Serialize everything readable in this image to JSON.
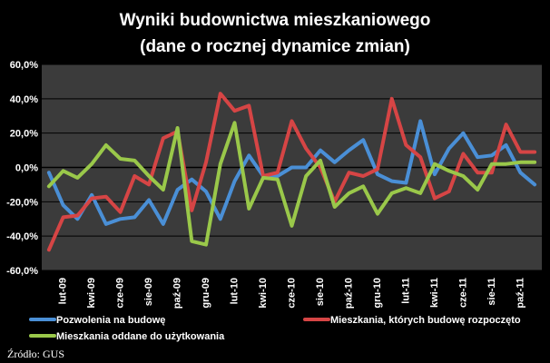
{
  "chart_data": {
    "type": "line",
    "title_line1": "Wyniki budownictwa mieszkaniowego",
    "title_line2": "(dane o rocznej dynamice zmian)",
    "xlabel": "",
    "ylabel": "",
    "ylim": [
      -60,
      60
    ],
    "yticks": [
      60,
      40,
      20,
      0,
      -20,
      -40,
      -60
    ],
    "ytick_labels": [
      "60,0%",
      "40,0%",
      "20,0%",
      "0,0%",
      "-20,0%",
      "-40,0%",
      "-60,0%"
    ],
    "grid": true,
    "legend_position": "bottom",
    "background_color": "#000000",
    "plot_background_color": "#3b3b3b",
    "categories": [
      "sty-09",
      "lut-09",
      "mar-09",
      "kwi-09",
      "maj-09",
      "cze-09",
      "lip-09",
      "sie-09",
      "wrz-09",
      "paź-09",
      "lis-09",
      "gru-09",
      "sty-10",
      "lut-10",
      "mar-10",
      "kwi-10",
      "maj-10",
      "cze-10",
      "lip-10",
      "sie-10",
      "wrz-10",
      "paź-10",
      "lis-10",
      "gru-10",
      "sty-11",
      "lut-11",
      "mar-11",
      "kwi-11",
      "maj-11",
      "cze-11",
      "lip-11",
      "sie-11",
      "wrz-11",
      "paź-11",
      "lis-11"
    ],
    "x_labels": [
      {
        "index": 1,
        "label": "lut-09"
      },
      {
        "index": 3,
        "label": "kwi-09"
      },
      {
        "index": 5,
        "label": "cze-09"
      },
      {
        "index": 7,
        "label": "sie-09"
      },
      {
        "index": 9,
        "label": "paź-09"
      },
      {
        "index": 11,
        "label": "gru-09"
      },
      {
        "index": 13,
        "label": "lut-10"
      },
      {
        "index": 15,
        "label": "kwi-10"
      },
      {
        "index": 17,
        "label": "cze-10"
      },
      {
        "index": 19,
        "label": "sie-10"
      },
      {
        "index": 21,
        "label": "paź-10"
      },
      {
        "index": 23,
        "label": "gru-10"
      },
      {
        "index": 25,
        "label": "lut-11"
      },
      {
        "index": 27,
        "label": "kwi-11"
      },
      {
        "index": 29,
        "label": "cze-11"
      },
      {
        "index": 31,
        "label": "sie-11"
      },
      {
        "index": 33,
        "label": "paź-11"
      }
    ],
    "series": [
      {
        "name": "Pozwolenia na budowę",
        "color": "#4a8fd6",
        "values": [
          -3,
          -22,
          -30,
          -16,
          -33,
          -30,
          -29,
          -19,
          -33,
          -13,
          -7,
          -14,
          -30,
          -8,
          7,
          -5,
          -5,
          0,
          0,
          10,
          3,
          10,
          16,
          -4,
          -8,
          -9,
          27,
          -4,
          11,
          20,
          6,
          7,
          13,
          -3,
          -10
        ]
      },
      {
        "name": "Mieszkania, których budowę rozpoczęto",
        "color": "#d64545",
        "values": [
          -48,
          -29,
          -28,
          -18,
          -17,
          -26,
          -5,
          -10,
          17,
          21,
          -25,
          3,
          43,
          33,
          36,
          -5,
          -3,
          27,
          11,
          0,
          -20,
          -3,
          -5,
          -1,
          40,
          13,
          6,
          -18,
          -14,
          8,
          -3,
          -3,
          25,
          9,
          9
        ]
      },
      {
        "name": "Mieszkania oddane do użytkowania",
        "color": "#9ac84a",
        "values": [
          -11,
          -2,
          -6,
          2,
          13,
          5,
          4,
          -5,
          -13,
          23,
          -43,
          -45,
          2,
          26,
          -24,
          -6,
          -7,
          -34,
          -5,
          4,
          -23,
          -15,
          -11,
          -27,
          -15,
          -12,
          -15,
          2,
          -2,
          -5,
          -13,
          2,
          2,
          3,
          3
        ]
      }
    ],
    "source": "Źródło: GUS"
  }
}
